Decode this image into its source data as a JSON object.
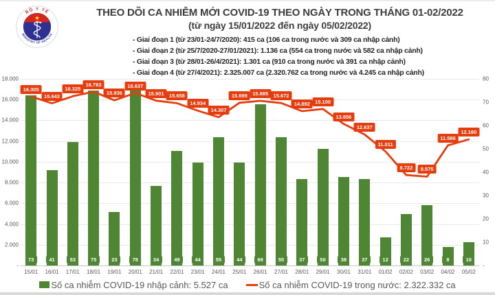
{
  "header": {
    "title": "THEO DÕI CA NHIỄM MỚI COVID-19 THEO NGÀY TRONG THÁNG 01-02/2022",
    "subtitle": "(từ ngày 15/01/2022 đến ngày 05/02/2022)",
    "notes": [
      "- Giai đoạn 1 (từ 23/01-24/7/2020): 415 ca (106 ca trong nước và 309 ca nhập cảnh)",
      "- Giai đoạn 2 (từ 25/7/2020-27/01/2021): 1.136 ca (554 ca trong nước và 582 ca nhập cảnh)",
      "- Giai đoạn 3 (từ 28/01-26/4/2021): 1.301 ca (910 ca trong nước và 391 ca nhập cảnh)",
      "- Giai đoạn 4 (từ 27/4/2021): 2.325.007 ca (2.320.762 ca trong nước và 4.245 ca nhập cảnh)"
    ],
    "logo": {
      "top_text": "BỘ Y TẾ",
      "bottom_text": "MINISTRY OF HEALTH"
    }
  },
  "legend": {
    "imported": "Số ca nhiễm COVID-19 nhập cảnh: 5.527 ca",
    "domestic": "Số ca nhiễm COVID-19 trong nước: 2.322.332 ca"
  },
  "colors": {
    "bar_green": "#4e8634",
    "line_red": "#e73c0d",
    "logo_navy": "#2e3192",
    "logo_red": "#da251d",
    "star_yellow": "#ffde00"
  },
  "chart_data": {
    "type": "bar+line combo",
    "title": "THEO DÕI CA NHIỄM MỚI COVID-19 THEO NGÀY TRONG THÁNG 01-02/2022",
    "categories": [
      "15/01",
      "16/01",
      "17/01",
      "18/01",
      "19/01",
      "20/01",
      "21/01",
      "22/01",
      "23/01",
      "24/01",
      "25/01",
      "26/01",
      "27/01",
      "28/01",
      "29/01",
      "30/01",
      "31/01",
      "01/02",
      "02/02",
      "03/02",
      "04/02",
      "05/02"
    ],
    "series": [
      {
        "name": "Số ca nhiễm COVID-19 nhập cảnh: 5.527 ca",
        "type": "bar",
        "axis": "right",
        "color": "#4e8634",
        "values": [
          73,
          41,
          53,
          75,
          23,
          78,
          34,
          49,
          44,
          55,
          44,
          69,
          55,
          37,
          50,
          38,
          37,
          12,
          22,
          26,
          8,
          10
        ],
        "point_labels": [
          "73",
          "41",
          "53",
          "75",
          "23",
          "78",
          "34",
          "49",
          "44",
          "55",
          "44",
          "69",
          "55",
          "37",
          "50",
          "38",
          "37",
          "12",
          "22",
          "26",
          "8",
          "10"
        ]
      },
      {
        "name": "Số ca nhiễm COVID-19 trong nước: 2.322.332 ca",
        "type": "line",
        "axis": "left",
        "color": "#e73c0d",
        "values": [
          16305,
          15643,
          16325,
          16763,
          15936,
          16637,
          15901,
          15658,
          14934,
          14307,
          15699,
          15885,
          15672,
          14892,
          15100,
          13656,
          12637,
          11011,
          8722,
          8575,
          11586,
          12160
        ],
        "point_labels": [
          "16.305",
          "15.643",
          "16.325",
          "16.763",
          "15.936",
          "16.637",
          "15.901",
          "15.658",
          "14.934",
          "14.307",
          "15.699",
          "15.885",
          "15.672",
          "14.892",
          "15.100",
          "13.656",
          "12.637",
          "11.011",
          "8.722",
          "8.575",
          "11.586",
          "12.160"
        ]
      }
    ],
    "left_axis": {
      "min": 0,
      "max": 18000,
      "tick_values": [
        18000,
        16000,
        14000,
        12000,
        10000,
        8000,
        6000,
        4000,
        2000,
        0
      ],
      "tick_labels": [
        "18.000",
        "16.000",
        "14.000",
        "12.000",
        "10.000",
        "8.000",
        "6.000",
        "4.000",
        "2.000",
        "-"
      ]
    },
    "right_axis": {
      "min": 0,
      "max": 80,
      "tick_values": [
        80,
        70,
        60,
        50,
        40,
        30,
        20,
        10,
        0
      ],
      "tick_labels": [
        "80",
        "70",
        "60",
        "50",
        "40",
        "30",
        "20",
        "10",
        "-"
      ]
    },
    "grid": "horizontal",
    "legend_position": "bottom"
  }
}
